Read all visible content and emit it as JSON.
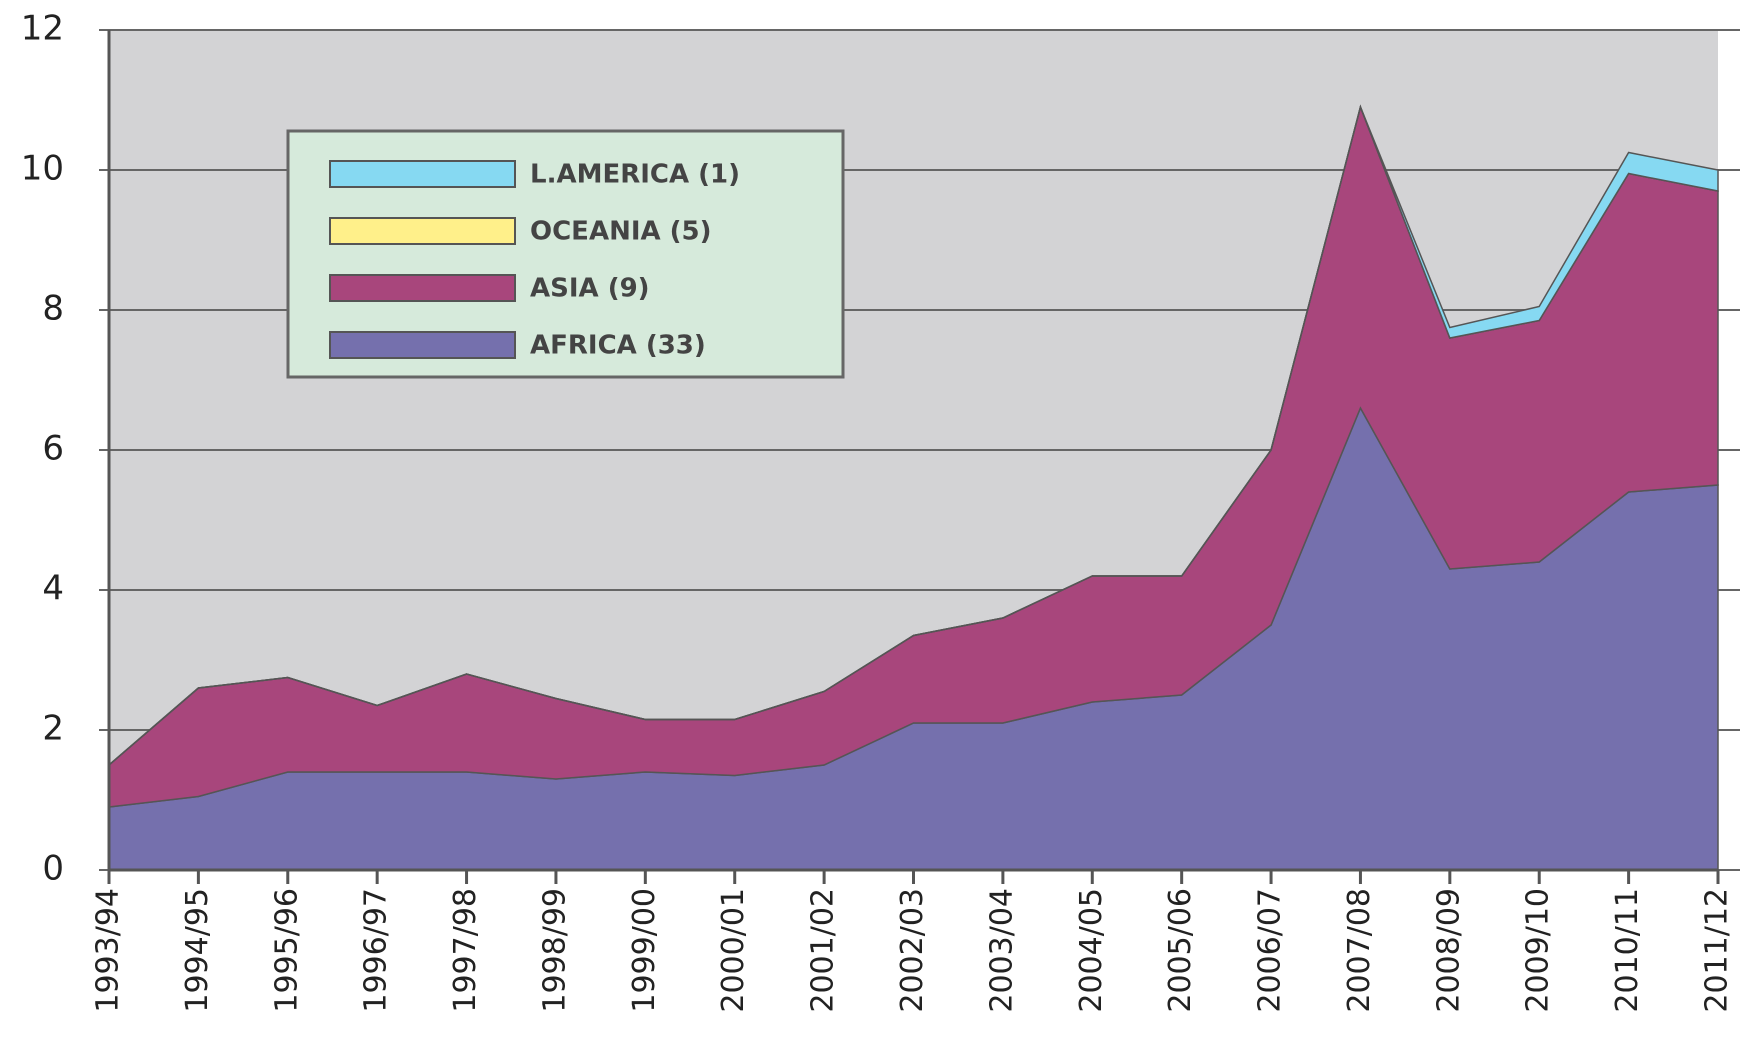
{
  "chart_data": {
    "type": "stacked-area",
    "categories": [
      "1993/94",
      "1994/95",
      "1995/96",
      "1996/97",
      "1997/98",
      "1998/99",
      "1999/00",
      "2000/01",
      "2001/02",
      "2002/03",
      "2003/04",
      "2004/05",
      "2005/06",
      "2006/07",
      "2007/08",
      "2008/09",
      "2009/10",
      "2010/11",
      "2011/12"
    ],
    "series": [
      {
        "name": "AFRICA (33)",
        "color": "#7570ad",
        "values": [
          0.9,
          1.05,
          1.4,
          1.4,
          1.4,
          1.3,
          1.4,
          1.35,
          1.5,
          2.1,
          2.1,
          2.4,
          2.5,
          3.5,
          6.6,
          4.3,
          4.4,
          5.4,
          5.5
        ]
      },
      {
        "name": "ASIA (9)",
        "color": "#a8467c",
        "values": [
          0.6,
          1.55,
          1.35,
          0.95,
          1.4,
          1.15,
          0.75,
          0.8,
          1.05,
          1.25,
          1.5,
          1.8,
          1.7,
          2.5,
          4.3,
          3.3,
          3.45,
          4.55,
          4.2
        ]
      },
      {
        "name": "OCEANIA (5)",
        "color": "#fff08a",
        "values": [
          0,
          0,
          0,
          0,
          0,
          0,
          0,
          0,
          0,
          0,
          0,
          0,
          0,
          0,
          0,
          0,
          0,
          0,
          0
        ]
      },
      {
        "name": "L.AMERICA (1)",
        "color": "#86d9f2",
        "values": [
          0,
          0,
          0,
          0,
          0,
          0,
          0,
          0,
          0,
          0,
          0,
          0,
          0,
          0,
          0,
          0.15,
          0.2,
          0.3,
          0.3
        ]
      }
    ],
    "ylim": [
      0,
      12
    ],
    "yticks": [
      0,
      2,
      4,
      6,
      8,
      10,
      12
    ],
    "grid": true,
    "legend": "upper-left"
  }
}
